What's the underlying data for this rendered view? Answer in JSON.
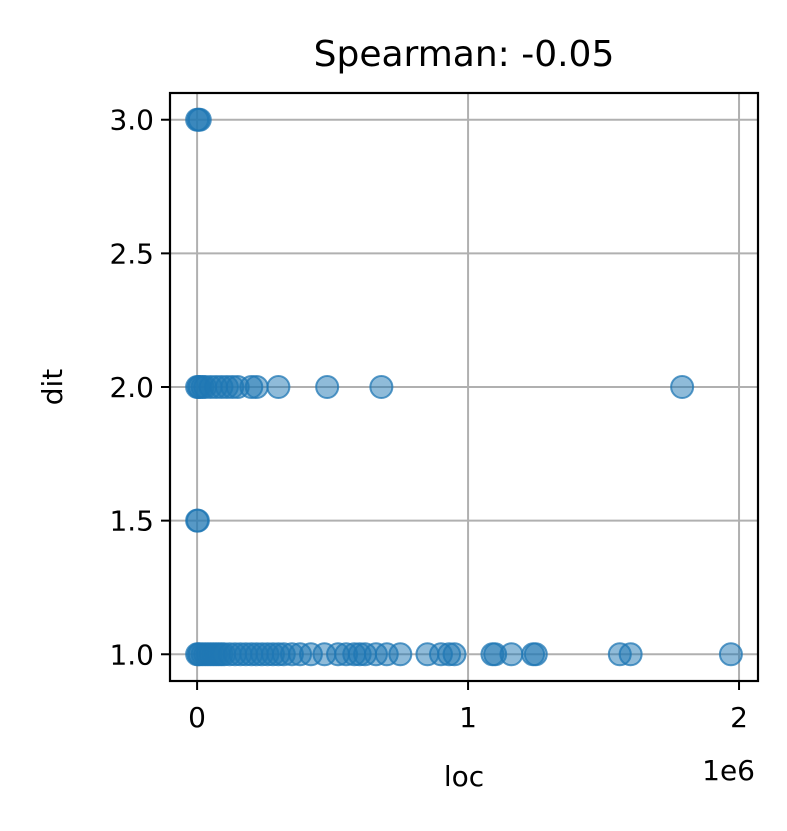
{
  "chart_data": {
    "type": "scatter",
    "title": "Spearman: -0.05",
    "xlabel": "loc",
    "ylabel": "dit",
    "x_offset_label": "1e6",
    "xlim": [
      -0.1,
      2.07
    ],
    "ylim": [
      0.9,
      3.1
    ],
    "x_ticks": [
      0,
      1,
      2
    ],
    "x_tick_labels": [
      "0",
      "1",
      "2"
    ],
    "y_ticks": [
      1.0,
      1.5,
      2.0,
      2.5,
      3.0
    ],
    "y_tick_labels": [
      "1.0",
      "1.5",
      "2.0",
      "2.5",
      "3.0"
    ],
    "grid": true,
    "point_color": "#1f77b4",
    "point_alpha": 0.5,
    "series": [
      {
        "x": [
          0.0,
          0.005,
          0.01,
          0.02,
          0.03,
          0.04,
          0.05,
          0.06,
          0.07,
          0.08,
          0.09,
          0.1,
          0.12,
          0.14,
          0.16,
          0.18,
          0.2,
          0.22,
          0.24,
          0.26,
          0.28,
          0.3,
          0.32,
          0.35,
          0.38,
          0.42,
          0.47,
          0.52,
          0.55,
          0.58,
          0.6,
          0.62,
          0.66,
          0.7,
          0.75,
          0.85,
          0.9,
          0.93,
          0.95,
          1.09,
          1.1,
          1.16,
          1.24,
          1.25,
          1.56,
          1.6,
          1.97,
          0.0,
          0.005,
          0.01,
          0.02,
          0.03,
          0.05,
          0.07,
          0.09,
          0.11,
          0.13,
          0.15,
          0.2,
          0.22,
          0.3,
          0.48,
          0.68,
          1.79,
          0.0,
          0.003,
          0.0,
          0.005,
          0.01
        ],
        "y": [
          1.0,
          1.0,
          1.0,
          1.0,
          1.0,
          1.0,
          1.0,
          1.0,
          1.0,
          1.0,
          1.0,
          1.0,
          1.0,
          1.0,
          1.0,
          1.0,
          1.0,
          1.0,
          1.0,
          1.0,
          1.0,
          1.0,
          1.0,
          1.0,
          1.0,
          1.0,
          1.0,
          1.0,
          1.0,
          1.0,
          1.0,
          1.0,
          1.0,
          1.0,
          1.0,
          1.0,
          1.0,
          1.0,
          1.0,
          1.0,
          1.0,
          1.0,
          1.0,
          1.0,
          1.0,
          1.0,
          1.0,
          2.0,
          2.0,
          2.0,
          2.0,
          2.0,
          2.0,
          2.0,
          2.0,
          2.0,
          2.0,
          2.0,
          2.0,
          2.0,
          2.0,
          2.0,
          2.0,
          2.0,
          1.5,
          1.5,
          3.0,
          3.0,
          3.0
        ]
      }
    ]
  }
}
